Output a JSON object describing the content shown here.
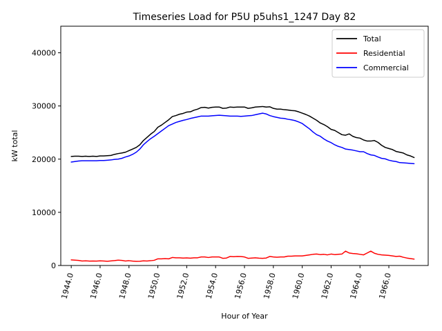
{
  "chart_data": {
    "type": "line",
    "title": "Timeseries Load for P5U p5uhs1_1247  Day 82",
    "xlabel": "Hour of Year",
    "ylabel": "kW total",
    "xlim": [
      1943.275,
      1968.725
    ],
    "ylim": [
      0,
      45000
    ],
    "x_ticks": [
      1944,
      1946,
      1948,
      1950,
      1952,
      1954,
      1956,
      1958,
      1960,
      1962,
      1964,
      1966
    ],
    "x_tick_labels": [
      "1944.0",
      "1946.0",
      "1948.0",
      "1950.0",
      "1952.0",
      "1954.0",
      "1956.0",
      "1958.0",
      "1960.0",
      "1962.0",
      "1964.0",
      "1966.0"
    ],
    "y_ticks": [
      0,
      10000,
      20000,
      30000,
      40000
    ],
    "y_tick_labels": [
      "0",
      "10000",
      "20000",
      "30000",
      "40000"
    ],
    "legend_position": "top-right",
    "x": [
      1944.0,
      1944.25,
      1944.5,
      1944.75,
      1945.0,
      1945.25,
      1945.5,
      1945.75,
      1946.0,
      1946.25,
      1946.5,
      1946.75,
      1947.0,
      1947.25,
      1947.5,
      1947.75,
      1948.0,
      1948.25,
      1948.5,
      1948.75,
      1949.0,
      1949.25,
      1949.5,
      1949.75,
      1950.0,
      1950.25,
      1950.5,
      1950.75,
      1951.0,
      1951.25,
      1951.5,
      1951.75,
      1952.0,
      1952.25,
      1952.5,
      1952.75,
      1953.0,
      1953.25,
      1953.5,
      1953.75,
      1954.0,
      1954.25,
      1954.5,
      1954.75,
      1955.0,
      1955.25,
      1955.5,
      1955.75,
      1956.0,
      1956.25,
      1956.5,
      1956.75,
      1957.0,
      1957.25,
      1957.5,
      1957.75,
      1958.0,
      1958.25,
      1958.5,
      1958.75,
      1959.0,
      1959.25,
      1959.5,
      1959.75,
      1960.0,
      1960.25,
      1960.5,
      1960.75,
      1961.0,
      1961.25,
      1961.5,
      1961.75,
      1962.0,
      1962.25,
      1962.5,
      1962.75,
      1963.0,
      1963.25,
      1963.5,
      1963.75,
      1964.0,
      1964.25,
      1964.5,
      1964.75,
      1965.0,
      1965.25,
      1965.5,
      1965.75,
      1966.0,
      1966.25,
      1966.5,
      1966.75,
      1967.0,
      1967.25,
      1967.5,
      1967.75
    ],
    "series": [
      {
        "name": "Total",
        "color": "#000000",
        "values": [
          20500,
          20550,
          20550,
          20500,
          20550,
          20500,
          20550,
          20500,
          20600,
          20600,
          20650,
          20700,
          20900,
          21050,
          21150,
          21300,
          21600,
          21900,
          22200,
          22700,
          23500,
          24100,
          24700,
          25200,
          26000,
          26400,
          26900,
          27400,
          28000,
          28200,
          28450,
          28600,
          28850,
          28900,
          29200,
          29400,
          29700,
          29750,
          29600,
          29750,
          29800,
          29800,
          29550,
          29600,
          29800,
          29750,
          29800,
          29800,
          29800,
          29550,
          29650,
          29800,
          29850,
          29900,
          29800,
          29850,
          29550,
          29400,
          29400,
          29300,
          29250,
          29150,
          29100,
          28900,
          28650,
          28400,
          28100,
          27700,
          27300,
          26800,
          26500,
          26100,
          25600,
          25400,
          25000,
          24600,
          24500,
          24750,
          24300,
          24050,
          23950,
          23600,
          23400,
          23400,
          23500,
          23150,
          22600,
          22200,
          22000,
          21800,
          21450,
          21300,
          21150,
          20800,
          20600,
          20300
        ]
      },
      {
        "name": "Residential",
        "color": "#ff0000",
        "values": [
          1050,
          1000,
          950,
          850,
          880,
          830,
          850,
          820,
          880,
          850,
          800,
          860,
          920,
          1000,
          950,
          850,
          900,
          820,
          780,
          800,
          880,
          850,
          900,
          980,
          1250,
          1250,
          1300,
          1250,
          1500,
          1450,
          1450,
          1400,
          1420,
          1380,
          1450,
          1450,
          1600,
          1600,
          1500,
          1600,
          1600,
          1600,
          1350,
          1400,
          1700,
          1650,
          1700,
          1680,
          1600,
          1350,
          1400,
          1450,
          1380,
          1350,
          1400,
          1700,
          1600,
          1550,
          1600,
          1600,
          1750,
          1750,
          1800,
          1800,
          1800,
          1900,
          2000,
          2100,
          2150,
          2050,
          2100,
          2000,
          2150,
          2050,
          2100,
          2150,
          2700,
          2350,
          2250,
          2200,
          2100,
          2000,
          2350,
          2700,
          2300,
          2100,
          2000,
          1950,
          1900,
          1800,
          1700,
          1750,
          1550,
          1400,
          1300,
          1200
        ]
      },
      {
        "name": "Commercial",
        "color": "#0000ff",
        "values": [
          19450,
          19550,
          19650,
          19700,
          19700,
          19700,
          19700,
          19700,
          19750,
          19750,
          19800,
          19850,
          19950,
          20000,
          20150,
          20400,
          20600,
          20900,
          21300,
          21900,
          22700,
          23300,
          23850,
          24300,
          24800,
          25300,
          25800,
          26300,
          26600,
          26900,
          27100,
          27300,
          27450,
          27650,
          27800,
          27950,
          28100,
          28100,
          28100,
          28150,
          28200,
          28250,
          28200,
          28150,
          28100,
          28100,
          28100,
          28050,
          28100,
          28150,
          28200,
          28350,
          28500,
          28650,
          28500,
          28200,
          28000,
          27850,
          27700,
          27650,
          27500,
          27400,
          27250,
          27000,
          26700,
          26200,
          25700,
          25100,
          24600,
          24300,
          23800,
          23400,
          23100,
          22700,
          22400,
          22200,
          21900,
          21800,
          21700,
          21550,
          21400,
          21400,
          21050,
          20800,
          20700,
          20400,
          20150,
          20050,
          19800,
          19650,
          19550,
          19350,
          19300,
          19250,
          19200,
          19150
        ]
      }
    ]
  }
}
